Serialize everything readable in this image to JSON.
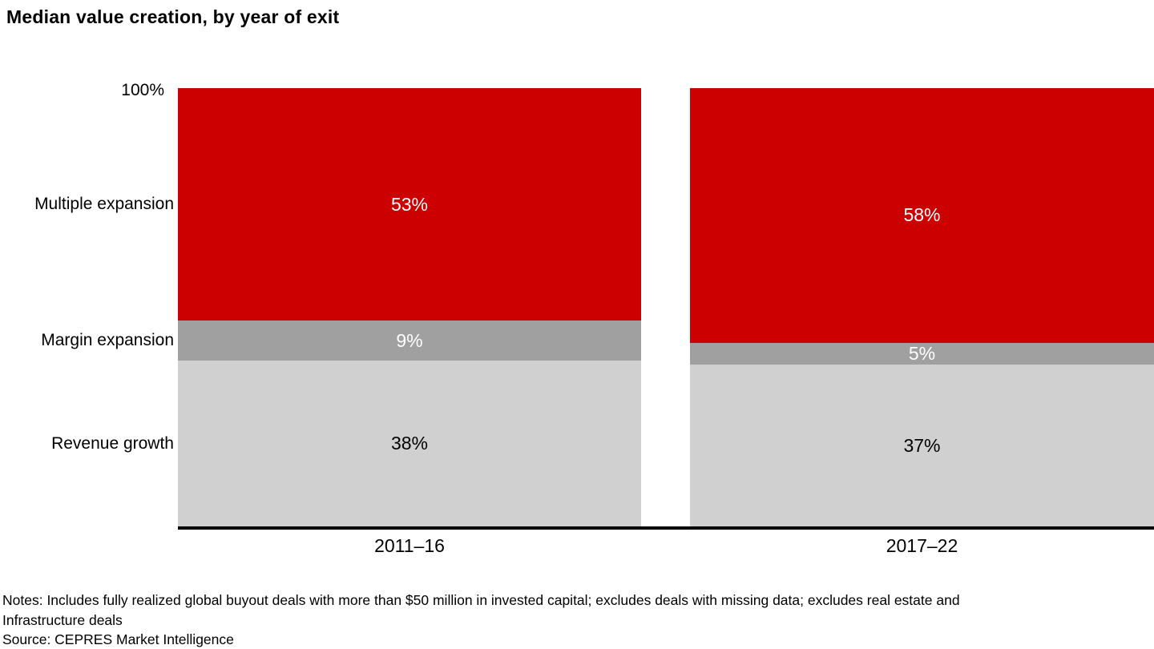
{
  "title": "Median value creation, by year of exit",
  "y_axis": {
    "top_label": "100%"
  },
  "chart_data": {
    "type": "bar",
    "stacked": true,
    "title": "Median value creation, by year of exit",
    "categories": [
      "2011–16",
      "2017–22"
    ],
    "series": [
      {
        "name": "Multiple expansion",
        "values": [
          53,
          58
        ],
        "color": "#cc0000",
        "label_color": "#ffffff"
      },
      {
        "name": "Margin expansion",
        "values": [
          9,
          5
        ],
        "color": "#a0a0a0",
        "label_color": "#ffffff"
      },
      {
        "name": "Revenue growth",
        "values": [
          38,
          37
        ],
        "color": "#d0d0d0",
        "label_color": "#000000"
      }
    ],
    "ylim": [
      0,
      100
    ],
    "value_suffix": "%",
    "legend_position": "left-category-labels",
    "grid": false,
    "axis_top_tick_label": "100%"
  },
  "footer": {
    "notes_line1": "Notes: Includes fully realized global buyout deals with more than $50 million in invested capital; excludes deals with missing data; excludes real estate and",
    "notes_line2": "Infrastructure deals",
    "source": "Source: CEPRES Market Intelligence"
  }
}
